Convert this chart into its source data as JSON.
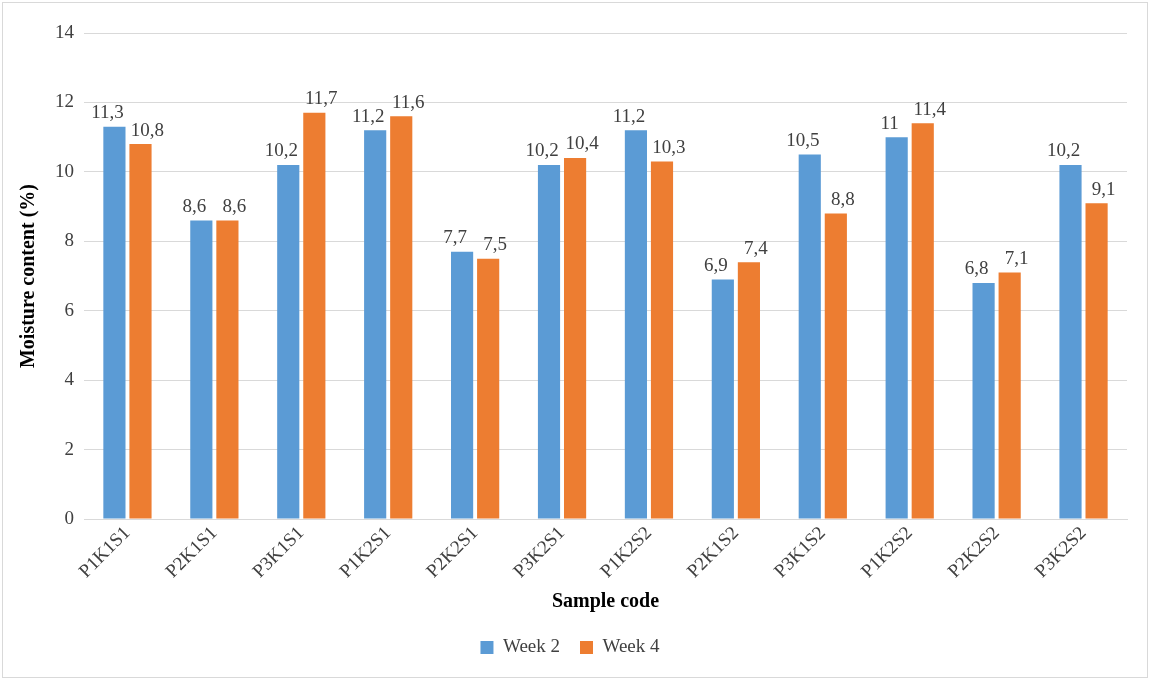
{
  "chart_data": {
    "type": "bar",
    "xlabel": "Sample code",
    "ylabel": "Moisture content (%)",
    "categories": [
      "P1K1S1",
      "P2K1S1",
      "P3K1S1",
      "P1K2S1",
      "P2K2S1",
      "P3K2S1",
      "P1K2S2",
      "P2K1S2",
      "P3K1S2",
      "P1K2S2",
      "P2K2S2",
      "P3K2S2"
    ],
    "series": [
      {
        "name": "Week 2",
        "color": "#5b9bd5",
        "values": [
          11.3,
          8.6,
          10.2,
          11.2,
          7.7,
          10.2,
          11.2,
          6.9,
          10.5,
          11,
          6.8,
          10.2
        ],
        "value_labels": [
          "11,3",
          "8,6",
          "10,2",
          "11,2",
          "7,7",
          "10,2",
          "11,2",
          "6,9",
          "10,5",
          "11",
          "6,8",
          "10,2"
        ]
      },
      {
        "name": "Week 4",
        "color": "#ed7d31",
        "values": [
          10.8,
          8.6,
          11.7,
          11.6,
          7.5,
          10.4,
          10.3,
          7.4,
          8.8,
          11.4,
          7.1,
          9.1
        ],
        "value_labels": [
          "10,8",
          "8,6",
          "11,7",
          "11,6",
          "7,5",
          "10,4",
          "10,3",
          "7,4",
          "8,8",
          "11,4",
          "7,1",
          "9,1"
        ]
      }
    ],
    "ylim": [
      0,
      14
    ],
    "yticks": [
      0,
      2,
      4,
      6,
      8,
      10,
      12,
      14
    ],
    "grid": "y",
    "legend": "bottom"
  }
}
